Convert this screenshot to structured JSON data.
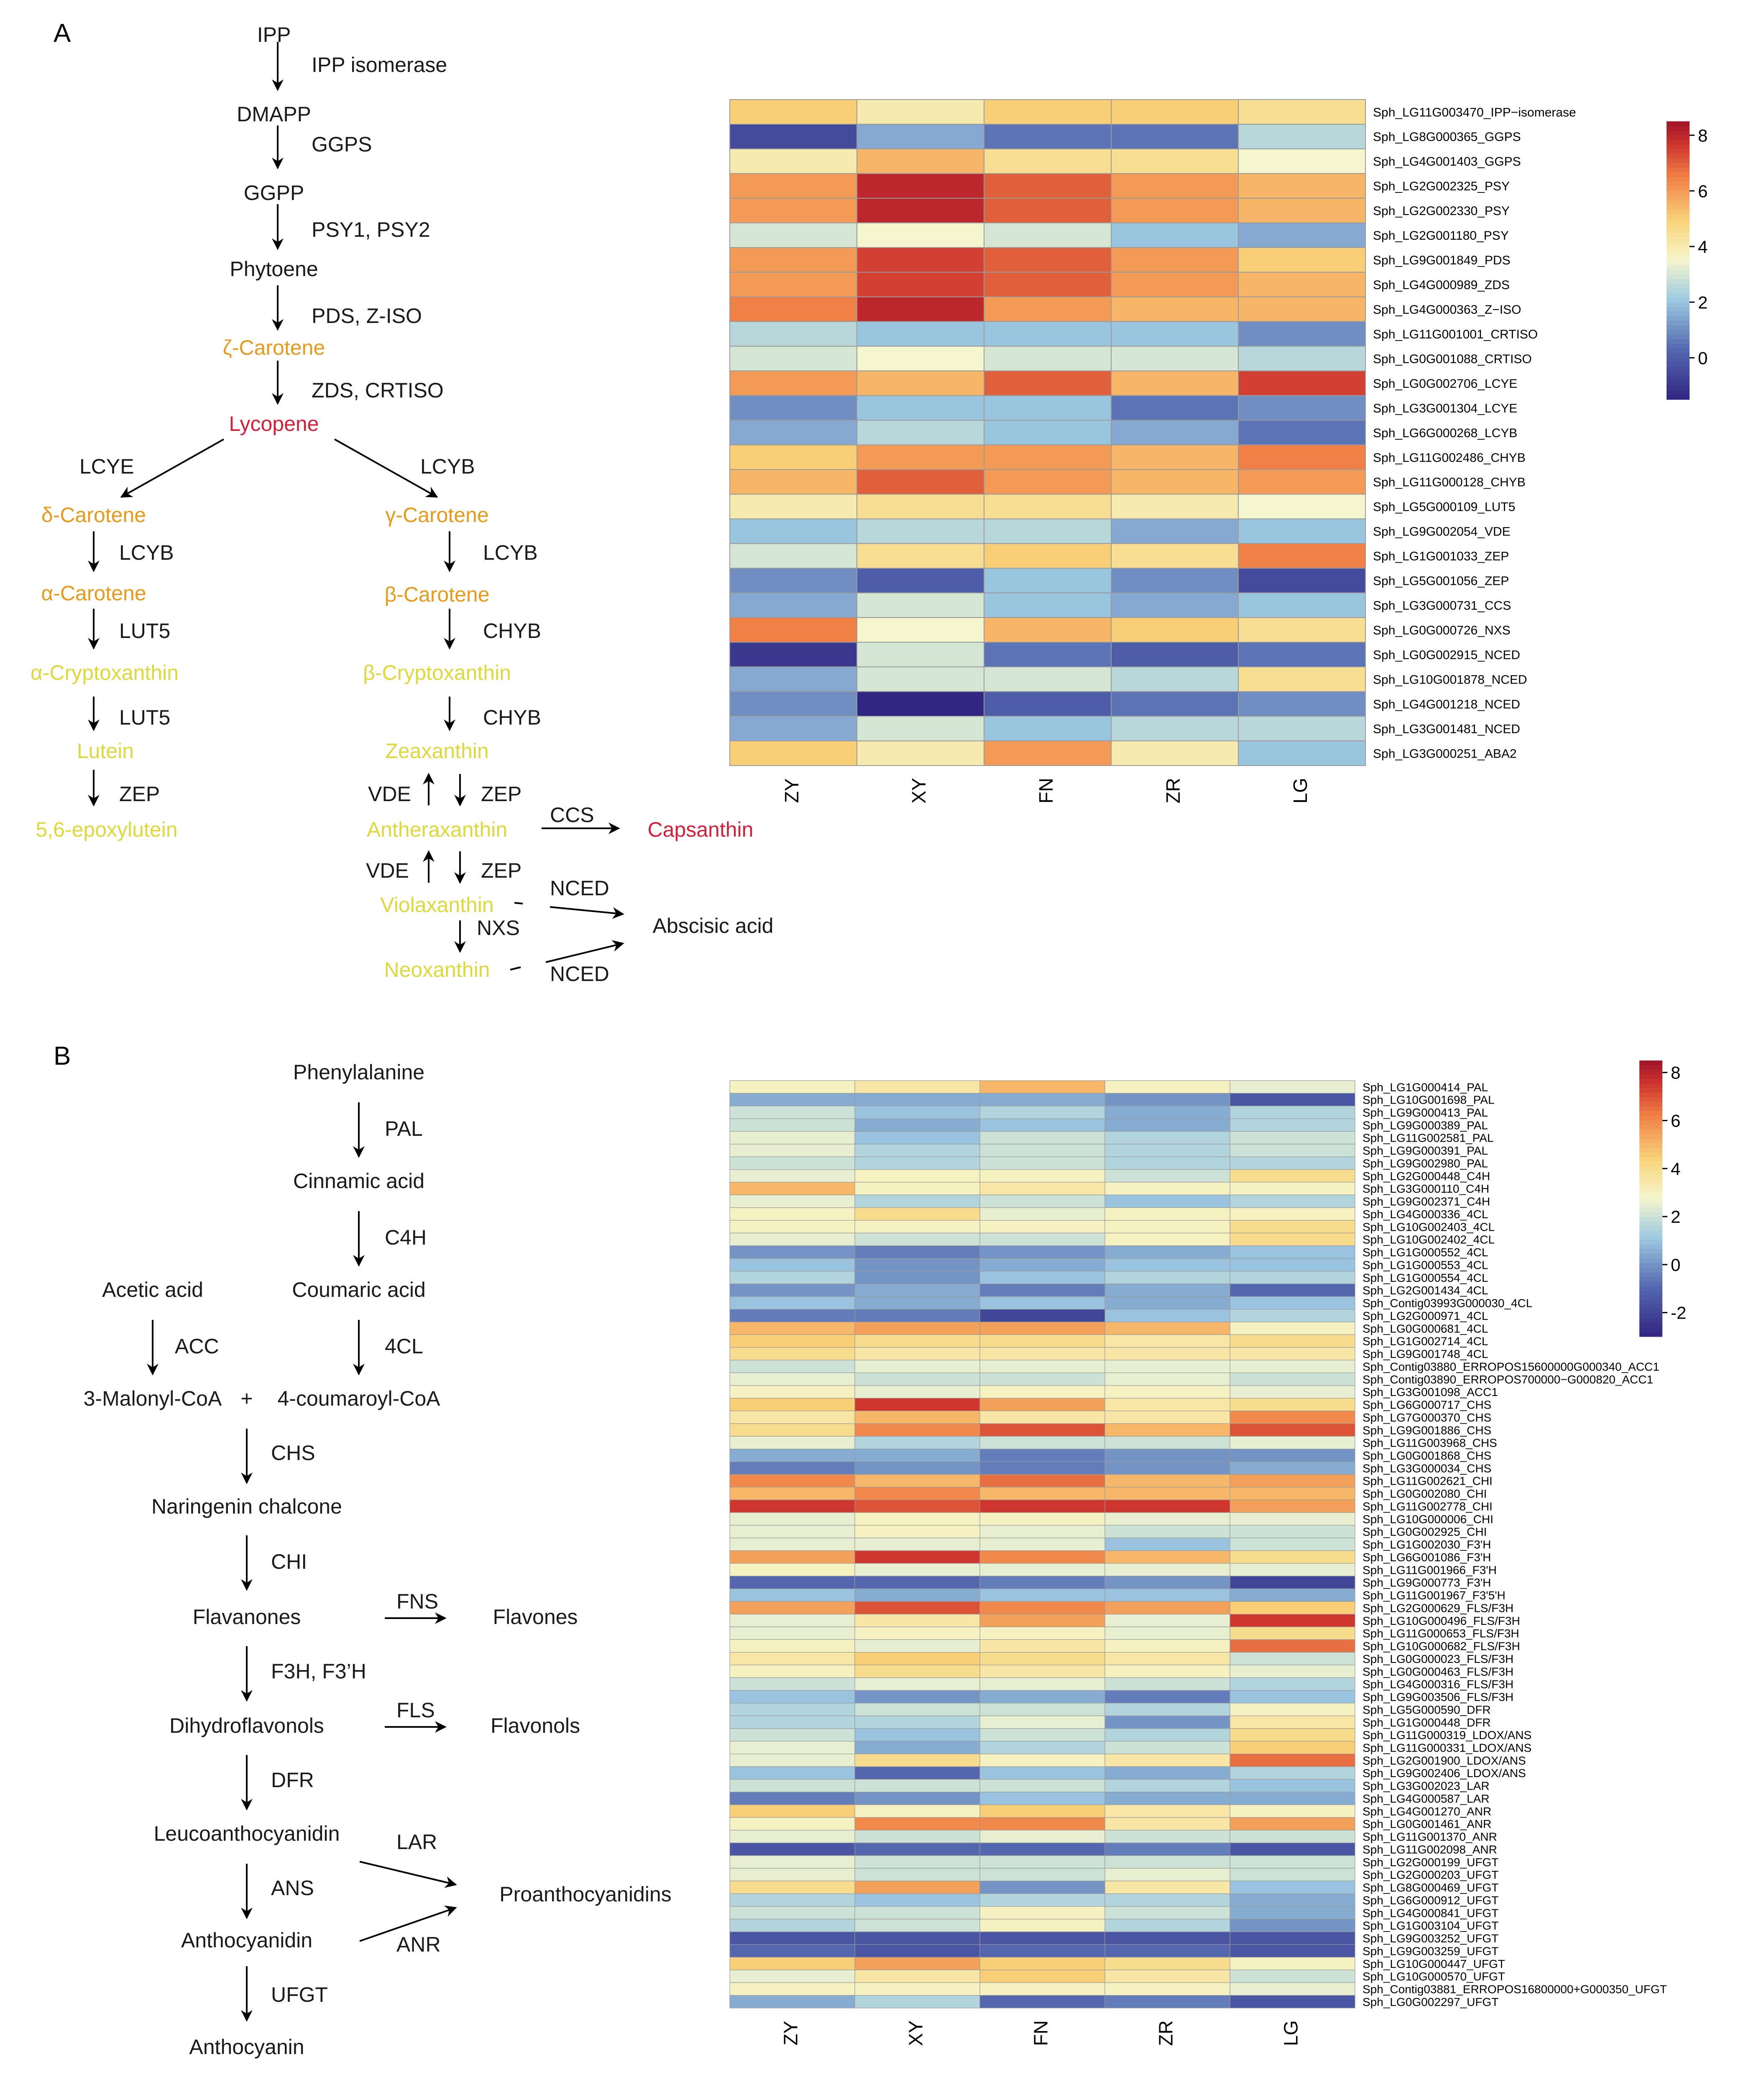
{
  "panels": {
    "A": "A",
    "B": "B"
  },
  "pathwayA": {
    "nodes": {
      "ipp": "IPP",
      "dmapp": "DMAPP",
      "ggpp": "GGPP",
      "phytoene": "Phytoene",
      "zeta_carotene": "ζ-Carotene",
      "lycopene": "Lycopene",
      "delta_carotene": "δ-Carotene",
      "gamma_carotene": "γ-Carotene",
      "alpha_carotene": "α-Carotene",
      "beta_carotene": "β-Carotene",
      "alpha_cryptoxanthin": "α-Cryptoxanthin",
      "beta_cryptoxanthin": "β-Cryptoxanthin",
      "lutein": "Lutein",
      "zeaxanthin": "Zeaxanthin",
      "epoxylutein": "5,6-epoxylutein",
      "antheraxanthin": "Antheraxanthin",
      "capsanthin": "Capsanthin",
      "violaxanthin": "Violaxanthin",
      "neoxanthin": "Neoxanthin",
      "abscisic_acid": "Abscisic acid"
    },
    "enzymes": {
      "ipp_isomerase": "IPP isomerase",
      "ggps": "GGPS",
      "psy": "PSY1, PSY2",
      "pds_ziso": "PDS, Z-ISO",
      "zds_crtiso": "ZDS, CRTISO",
      "lcye": "LCYE",
      "lcyb_branch": "LCYB",
      "lcyb_left": "LCYB",
      "lcyb_right": "LCYB",
      "lut5_1": "LUT5",
      "chyb_1": "CHYB",
      "lut5_2": "LUT5",
      "chyb_2": "CHYB",
      "zep_left": "ZEP",
      "vde_1": "VDE",
      "zep_1": "ZEP",
      "ccs": "CCS",
      "vde_2": "VDE",
      "zep_2": "ZEP",
      "nced_1": "NCED",
      "nxs": "NXS",
      "nced_2": "NCED"
    }
  },
  "pathwayB": {
    "nodes": {
      "phenylalanine": "Phenylalanine",
      "cinnamic_acid": "Cinnamic acid",
      "acetic_acid": "Acetic acid",
      "coumaric_acid": "Coumaric acid",
      "malonyl": "3-Malonyl-CoA",
      "plus": "+",
      "coumaroyl": "4-coumaroyl-CoA",
      "naringenin": "Naringenin chalcone",
      "flavanones": "Flavanones",
      "flavones": "Flavones",
      "dihydroflavonols": "Dihydroflavonols",
      "flavonols": "Flavonols",
      "leucoanthocyanidin": "Leucoanthocyanidin",
      "proanthocyanidins": "Proanthocyanidins",
      "anthocyanidin": "Anthocyanidin",
      "anthocyanin": "Anthocyanin"
    },
    "enzymes": {
      "pal": "PAL",
      "c4h": "C4H",
      "acc": "ACC",
      "cl4": "4CL",
      "chs": "CHS",
      "chi": "CHI",
      "fns": "FNS",
      "f3h": "F3H, F3’H",
      "fls": "FLS",
      "dfr": "DFR",
      "lar": "LAR",
      "ans": "ANS",
      "anr": "ANR",
      "ufgt": "UFGT"
    }
  },
  "chart_data": [
    {
      "type": "heatmap",
      "title": "",
      "columns": [
        "ZY",
        "XY",
        "FN",
        "ZR",
        "LG"
      ],
      "rows": [
        "Sph_LG11G003470_IPP−isomerase",
        "Sph_LG8G000365_GGPS",
        "Sph_LG4G001403_GGPS",
        "Sph_LG2G002325_PSY",
        "Sph_LG2G002330_PSY",
        "Sph_LG2G001180_PSY",
        "Sph_LG9G001849_PDS",
        "Sph_LG4G000989_ZDS",
        "Sph_LG4G000363_Z−ISO",
        "Sph_LG11G001001_CRTISO",
        "Sph_LG0G001088_CRTISO",
        "Sph_LG0G002706_LCYE",
        "Sph_LG3G001304_LCYE",
        "Sph_LG6G000268_LCYB",
        "Sph_LG11G002486_CHYB",
        "Sph_LG11G000128_CHYB",
        "Sph_LG5G000109_LUT5",
        "Sph_LG9G002054_VDE",
        "Sph_LG1G001033_ZEP",
        "Sph_LG5G001056_ZEP",
        "Sph_LG3G000731_CCS",
        "Sph_LG0G000726_NXS",
        "Sph_LG0G002915_NCED",
        "Sph_LG10G001878_NCED",
        "Sph_LG4G001218_NCED",
        "Sph_LG3G001481_NCED",
        "Sph_LG3G000251_ABA2"
      ],
      "values": [
        [
          5,
          4,
          5,
          5,
          4.5
        ],
        [
          -0.5,
          1.5,
          0.5,
          0.5,
          2.5
        ],
        [
          4,
          5.5,
          4.5,
          4.5,
          3.5
        ],
        [
          6,
          8,
          7,
          6,
          5.5
        ],
        [
          6,
          8,
          7,
          6,
          5.5
        ],
        [
          3,
          3.5,
          3,
          2,
          1.5
        ],
        [
          6,
          7.5,
          7,
          6,
          5
        ],
        [
          6,
          7.5,
          7,
          6,
          5.5
        ],
        [
          6.5,
          8,
          6,
          5.5,
          5.5
        ],
        [
          2.5,
          2,
          2,
          2,
          1
        ],
        [
          3,
          3.5,
          3,
          3,
          2.5
        ],
        [
          6,
          5.5,
          7,
          5.5,
          7.5
        ],
        [
          1,
          2,
          2,
          0.5,
          1
        ],
        [
          1.5,
          2.5,
          2,
          1.5,
          0.5
        ],
        [
          5,
          6,
          6,
          5.5,
          6.5
        ],
        [
          5.5,
          7,
          6,
          5.5,
          6
        ],
        [
          4,
          4.5,
          4.5,
          4,
          3.5
        ],
        [
          2,
          2.5,
          2.5,
          1.5,
          2
        ],
        [
          3,
          4.5,
          5,
          4.5,
          6.5
        ],
        [
          1,
          0,
          2,
          1,
          -0.5
        ],
        [
          1.5,
          3,
          2,
          1.5,
          2
        ],
        [
          6.5,
          3.5,
          5.5,
          5,
          4.5
        ],
        [
          -1,
          3,
          0.5,
          0,
          0.5
        ],
        [
          1.5,
          3,
          3,
          2.5,
          4.5
        ],
        [
          1,
          -1.5,
          0,
          0.5,
          1
        ],
        [
          1.5,
          3,
          2,
          2.5,
          2.5
        ],
        [
          5,
          4,
          6,
          4,
          2
        ]
      ],
      "colorbar": {
        "ticks": [
          8,
          6,
          4,
          2,
          0
        ],
        "range": [
          -1.5,
          8.5
        ]
      }
    },
    {
      "type": "heatmap",
      "title": "",
      "columns": [
        "ZY",
        "XY",
        "FN",
        "ZR",
        "LG"
      ],
      "rows": [
        "Sph_LG1G000414_PAL",
        "Sph_LG10G001698_PAL",
        "Sph_LG9G000413_PAL",
        "Sph_LG9G000389_PAL",
        "Sph_LG11G002581_PAL",
        "Sph_LG9G000391_PAL",
        "Sph_LG9G002980_PAL",
        "Sph_LG2G000448_C4H",
        "Sph_LG3G000110_C4H",
        "Sph_LG9G002371_C4H",
        "Sph_LG4G000336_4CL",
        "Sph_LG10G002403_4CL",
        "Sph_LG10G002402_4CL",
        "Sph_LG1G000552_4CL",
        "Sph_LG1G000553_4CL",
        "Sph_LG1G000554_4CL",
        "Sph_LG2G001434_4CL",
        "Sph_Contig03993G000030_4CL",
        "Sph_LG2G000971_4CL",
        "Sph_LG0G000681_4CL",
        "Sph_LG1G002714_4CL",
        "Sph_LG9G001748_4CL",
        "Sph_Contig03880_ERROPOS15600000G000340_ACC1",
        "Sph_Contig03890_ERROPOS700000−G000820_ACC1",
        "Sph_LG3G001098_ACC1",
        "Sph_LG6G000717_CHS",
        "Sph_LG7G000370_CHS",
        "Sph_LG9G001886_CHS",
        "Sph_LG11G003968_CHS",
        "Sph_LG0G001868_CHS",
        "Sph_LG3G000034_CHS",
        "Sph_LG11G002621_CHI",
        "Sph_LG0G002080_CHI",
        "Sph_LG11G002778_CHI",
        "Sph_LG10G000006_CHI",
        "Sph_LG0G002925_CHI",
        "Sph_LG1G002030_F3'H",
        "Sph_LG6G001086_F3'H",
        "Sph_LG11G001966_F3'H",
        "Sph_LG9G000773_F3'H",
        "Sph_LG11G001967_F3'5'H",
        "Sph_LG2G000629_FLS/F3H",
        "Sph_LG10G000496_FLS/F3H",
        "Sph_LG11G000653_FLS/F3H",
        "Sph_LG10G000682_FLS/F3H",
        "Sph_LG0G000023_FLS/F3H",
        "Sph_LG0G000463_FLS/F3H",
        "Sph_LG4G000316_FLS/F3H",
        "Sph_LG9G003506_FLS/F3H",
        "Sph_LG5G000590_DFR",
        "Sph_LG1G000448_DFR",
        "Sph_LG11G000319_LDOX/ANS",
        "Sph_LG11G000331_LDOX/ANS",
        "Sph_LG2G001900_LDOX/ANS",
        "Sph_LG9G002406_LDOX/ANS",
        "Sph_LG3G002023_LAR",
        "Sph_LG4G000587_LAR",
        "Sph_LG4G001270_ANR",
        "Sph_LG0G001461_ANR",
        "Sph_LG11G001370_ANR",
        "Sph_LG11G002098_ANR",
        "Sph_LG2G000199_UFGT",
        "Sph_LG2G000203_UFGT",
        "Sph_LG8G000469_UFGT",
        "Sph_LG6G000912_UFGT",
        "Sph_LG4G000841_UFGT",
        "Sph_LG1G003104_UFGT",
        "Sph_LG9G003252_UFGT",
        "Sph_LG9G003259_UFGT",
        "Sph_LG10G000447_UFGT",
        "Sph_LG10G000570_UFGT",
        "Sph_Contig03881_ERROPOS16800000+G000350_UFGT",
        "Sph_LG0G002297_UFGT"
      ],
      "values": [
        [
          3,
          3.5,
          5,
          3,
          2.5
        ],
        [
          0.5,
          0.5,
          0.5,
          0,
          -1.5
        ],
        [
          2,
          1,
          1.5,
          0.5,
          1.5
        ],
        [
          2,
          0.5,
          1,
          0.5,
          1.5
        ],
        [
          2.5,
          1,
          2,
          1.5,
          2
        ],
        [
          2.5,
          1.5,
          2,
          1.5,
          2
        ],
        [
          2,
          1.5,
          2,
          1.5,
          1.5
        ],
        [
          2.5,
          3,
          3,
          2,
          4
        ],
        [
          5,
          3,
          3.5,
          3,
          3
        ],
        [
          2.5,
          1.5,
          2,
          1,
          1.5
        ],
        [
          3,
          4,
          2.5,
          3,
          3
        ],
        [
          3,
          3,
          3,
          3,
          4
        ],
        [
          2.5,
          2,
          2,
          3,
          4
        ],
        [
          0,
          -0.5,
          0,
          0.5,
          1
        ],
        [
          1,
          0,
          0.5,
          1,
          1
        ],
        [
          1.5,
          0,
          1,
          1.5,
          1.5
        ],
        [
          0,
          0.5,
          -0.5,
          0.5,
          -1
        ],
        [
          1,
          0.5,
          1,
          0.5,
          1
        ],
        [
          -0.5,
          -0.5,
          -2,
          1,
          1.5
        ],
        [
          5,
          5.5,
          5.5,
          5,
          3
        ],
        [
          4.5,
          4,
          4,
          3.5,
          4
        ],
        [
          4,
          3.5,
          3.5,
          3.5,
          3.5
        ],
        [
          2,
          2.5,
          2.5,
          2.5,
          2.5
        ],
        [
          2.5,
          2,
          2,
          2.5,
          2
        ],
        [
          3,
          2.5,
          3,
          3,
          2.5
        ],
        [
          4.5,
          7.5,
          5.5,
          3.5,
          4
        ],
        [
          3.5,
          5,
          3.5,
          3.5,
          6
        ],
        [
          4,
          6,
          7,
          5,
          7
        ],
        [
          2.5,
          1.5,
          2,
          2,
          2.5
        ],
        [
          0.5,
          0.5,
          -0.5,
          0,
          0
        ],
        [
          -0.5,
          0,
          -0.5,
          0,
          0.5
        ],
        [
          6,
          5,
          6.5,
          5,
          5.5
        ],
        [
          5,
          6,
          5,
          5,
          5
        ],
        [
          7.5,
          7,
          7.5,
          7.5,
          5.5
        ],
        [
          2.5,
          3,
          3,
          2.5,
          2.5
        ],
        [
          2.5,
          3,
          2.5,
          2,
          2
        ],
        [
          2.5,
          2.5,
          2.5,
          1,
          2
        ],
        [
          5.5,
          7.5,
          6,
          5,
          4
        ],
        [
          3,
          2.5,
          2.5,
          2.5,
          2.5
        ],
        [
          -1,
          -1,
          -0.5,
          0,
          -2
        ],
        [
          1,
          0.5,
          1,
          1,
          0.5
        ],
        [
          5.5,
          7,
          6,
          5.5,
          4.5
        ],
        [
          2.5,
          3.5,
          5.5,
          2.5,
          7.5
        ],
        [
          2.5,
          3,
          3,
          2.5,
          4
        ],
        [
          3,
          2.5,
          3.5,
          3,
          6.5
        ],
        [
          3.5,
          4.5,
          4,
          3.5,
          2
        ],
        [
          3,
          4,
          3.5,
          3,
          2.5
        ],
        [
          2,
          2.5,
          2.5,
          2,
          1.5
        ],
        [
          1,
          0,
          0.5,
          -0.5,
          1
        ],
        [
          1.5,
          2,
          2,
          1.5,
          3
        ],
        [
          1.5,
          1.5,
          2.5,
          0,
          3.5
        ],
        [
          2,
          1,
          2,
          1.5,
          4
        ],
        [
          2.5,
          0.5,
          1.5,
          2,
          4.5
        ],
        [
          2.5,
          4,
          3,
          3.5,
          6.5
        ],
        [
          1,
          -1,
          1,
          0.5,
          1.5
        ],
        [
          2,
          2,
          2,
          1.5,
          1
        ],
        [
          -0.5,
          0,
          1,
          0.5,
          0.5
        ],
        [
          4.5,
          3,
          4.5,
          3.5,
          3
        ],
        [
          3,
          6,
          6,
          3.5,
          5.5
        ],
        [
          2.5,
          2,
          2.5,
          2,
          2
        ],
        [
          -1.5,
          -1,
          -1,
          -0.5,
          -1.5
        ],
        [
          2.5,
          2,
          2,
          2,
          2
        ],
        [
          2.5,
          2,
          2,
          2.5,
          2
        ],
        [
          4,
          5.5,
          0,
          3.5,
          1
        ],
        [
          1.5,
          1,
          1.5,
          1.5,
          0.5
        ],
        [
          2,
          2,
          3,
          2,
          0.5
        ],
        [
          1.5,
          2,
          3,
          1.5,
          0
        ],
        [
          -1.5,
          -1.5,
          -1.5,
          -1.5,
          -1.5
        ],
        [
          -1,
          -1.5,
          -1,
          -1,
          -1.5
        ],
        [
          4.5,
          5.5,
          4.5,
          4,
          3
        ],
        [
          2.5,
          3.5,
          4.5,
          3.5,
          2
        ],
        [
          3,
          3,
          3,
          3,
          2.5
        ],
        [
          0.5,
          1.5,
          -1,
          -0.5,
          -1.5
        ]
      ],
      "colorbar": {
        "ticks": [
          8,
          6,
          4,
          2,
          0,
          -2
        ],
        "range": [
          -3,
          8.5
        ]
      }
    }
  ]
}
